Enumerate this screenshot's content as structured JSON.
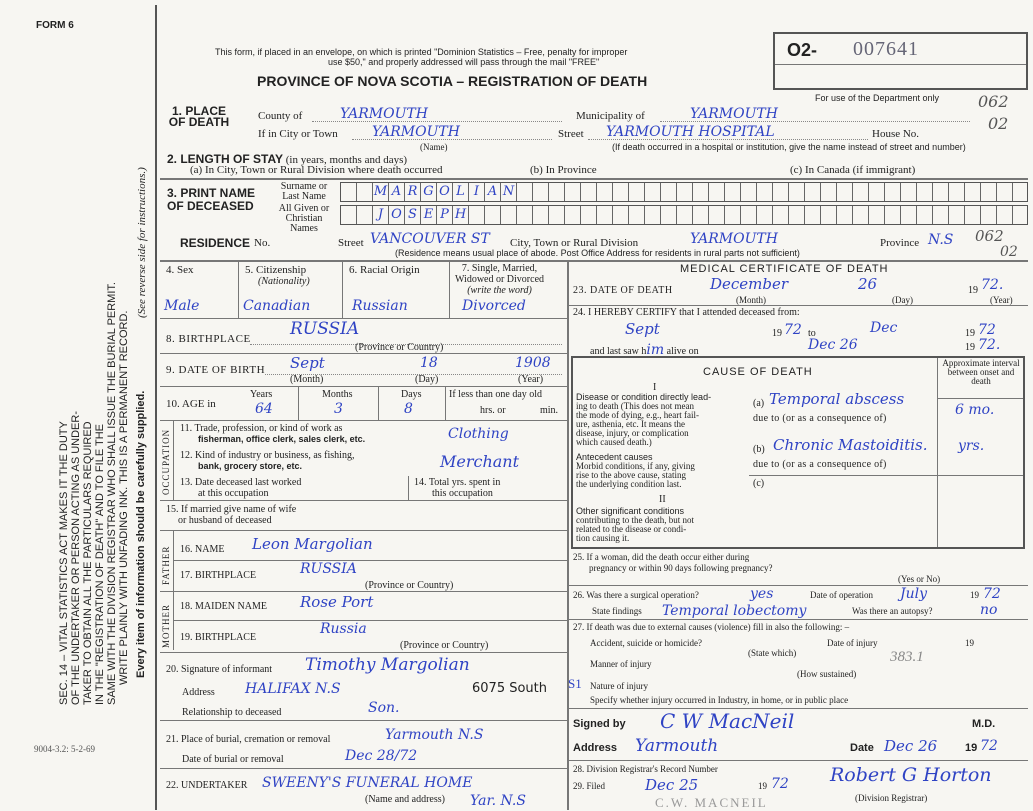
{
  "margin": {
    "form_no": "FORM 6",
    "print_code": "9004-3.2: 5-2-69",
    "statute_lines": [
      "SEC. 14 – VITAL STATISTICS ACT MAKES IT THE DUTY",
      "OF THE UNDERTAKER OR PERSON ACTING AS UNDER-",
      "TAKER TO OBTAIN ALL THE PARTICULARS REQUIRED",
      "IN THE \"REGISTRATION OF DEATH\" AND TO FILE THE",
      "SAME WITH THE DIVISION REGISTRAR WHO SHALL ISSUE THE BURIAL PERMIT.",
      "WRITE PLAINLY WITH UNFADING INK. THIS IS A PERMANENT RECORD."
    ],
    "every_item": "Every item of information should be carefully supplied.",
    "see_reverse": "(See reverse side for instructions.)"
  },
  "header": {
    "notice1": "This form, if placed in an envelope, on which is printed \"Dominion Statistics – Free, penalty for improper",
    "notice2": "use $50,\" and properly addressed will pass through the mail \"FREE\"",
    "title": "PROVINCE OF NOVA SCOTIA – REGISTRATION OF DEATH",
    "reg_prefix": "O2-",
    "reg_number": "007641",
    "dept_only": "For use of the Department only",
    "code1": "062",
    "code2": "02",
    "code3": "062",
    "code4": "02"
  },
  "place": {
    "label": "1. PLACE OF DEATH",
    "county_label": "County of",
    "county": "YARMOUTH",
    "muni_label": "Municipality of",
    "muni": "YARMOUTH",
    "city_label": "If in City or Town",
    "city": "YARMOUTH",
    "name_note": "(Name)",
    "street_label": "Street",
    "street": "YARMOUTH HOSPITAL",
    "house_label": "House No.",
    "hospital_note": "(If death occurred in a hospital or institution, give the name instead of street and number)"
  },
  "stay": {
    "label": "2. LENGTH OF STAY",
    "label_note": "(in years, months and days)",
    "a": "(a) In City, Town or Rural Division where death occurred",
    "b": "(b) In Province",
    "c": "(c) In Canada (if immigrant)"
  },
  "name": {
    "label": "3. PRINT NAME OF DECEASED",
    "surname_label": "Surname or Last Name",
    "given_label": "All Given or Christian Names",
    "surname": [
      "M",
      "A",
      "R",
      "G",
      "O",
      "L",
      "I",
      "A",
      "N"
    ],
    "given": [
      "J",
      "O",
      "S",
      "E",
      "P",
      "H"
    ]
  },
  "residence": {
    "label": "RESIDENCE",
    "no_label": "No.",
    "street_label": "Street",
    "street": "VANCOUVER ST",
    "city_label": "City, Town or Rural Division",
    "city": "YARMOUTH",
    "prov_label": "Province",
    "prov": "N.S",
    "note": "(Residence means usual place of abode. Post Office Address for residents in rural parts not sufficient)"
  },
  "personal": {
    "sex_label": "4. Sex",
    "sex": "Male",
    "cit_label": "5. Citizenship",
    "cit_note": "(Nationality)",
    "cit": "Canadian",
    "race_label": "6. Racial Origin",
    "race": "Russian",
    "marital_label1": "7. Single, Married,",
    "marital_label2": "Widowed or Divorced",
    "marital_note": "(write the word)",
    "marital": "Divorced",
    "birthplace_label": "8. BIRTHPLACE",
    "birthplace": "RUSSIA",
    "prov_country": "(Province or Country)",
    "dob_label": "9. DATE OF BIRTH",
    "dob_month": "Sept",
    "dob_day": "18",
    "dob_year": "1908",
    "month": "(Month)",
    "day": "(Day)",
    "year": "(Year)",
    "age_label": "10. AGE in",
    "years_label": "Years",
    "years": "64",
    "months_label": "Months",
    "months": "3",
    "days_label": "Days",
    "days": "8",
    "lessday_label": "If less than one day old",
    "hrs": "hrs. or",
    "min": "min."
  },
  "occupation": {
    "side": "OCCUPATION",
    "q11a": "11. Trade, profession, or kind of work as",
    "q11b": "fisherman, office clerk, sales clerk, etc.",
    "a11": "Clothing",
    "q12a": "12. Kind of industry or business, as fishing,",
    "q12b": "bank, grocery store, etc.",
    "a12": "Merchant",
    "q13a": "13. Date deceased last worked",
    "q13b": "at this occupation",
    "q14a": "14. Total yrs. spent in",
    "q14b": "this occupation",
    "q15a": "15. If married give name of wife",
    "q15b": "or husband of deceased"
  },
  "father": {
    "side": "FATHER",
    "name_label": "16. NAME",
    "name": "Leon Margolian",
    "bp_label": "17. BIRTHPLACE",
    "bp": "RUSSIA"
  },
  "mother": {
    "side": "MOTHER",
    "name_label": "18. MAIDEN NAME",
    "name": "Rose Port",
    "bp_label": "19. BIRTHPLACE",
    "bp": "Russia"
  },
  "informant": {
    "sig_label": "20. Signature of informant",
    "sig": "Timothy Margolian",
    "addr_label": "Address",
    "addr": "HALIFAX N.S",
    "addr2": "6075 South",
    "rel_label": "Relationship to deceased",
    "rel": "Son."
  },
  "burial": {
    "place_label": "21. Place of burial, cremation or removal",
    "place": "Yarmouth N.S",
    "date_label": "Date of burial or removal",
    "date": "Dec 28/72",
    "und_label": "22. UNDERTAKER",
    "und": "SWEENY'S FUNERAL HOME",
    "und_note": "(Name and address)",
    "und2": "Yar. N.S"
  },
  "medical": {
    "title": "MEDICAL CERTIFICATE OF DEATH",
    "dod_label": "23. DATE OF DEATH",
    "dod_month": "December",
    "dod_day": "26",
    "dod_year": "72.",
    "nineteen": "19",
    "cert_label": "24. I HEREBY CERTIFY that I attended deceased from:",
    "from": "Sept",
    "from_year": "72",
    "to": "to",
    "to_month": "Dec",
    "to_year": "72",
    "lastsaw_label": "and last saw h",
    "lastsaw_him": "im",
    "alive_on": "alive on",
    "last_date": "Dec 26",
    "last_year": "72."
  },
  "cause": {
    "title": "CAUSE OF DEATH",
    "interval": "Approximate interval between onset and death",
    "I": "I",
    "dis_bold": "Disease or condition directly lead-",
    "dis_text": [
      "ing to death (This does not mean",
      "the mode of dying, e.g., heart fail-",
      "ure, asthenia, etc. It means the",
      "disease, injury, or complication",
      "which caused death.)"
    ],
    "a_label": "(a)",
    "a": "Temporal abscess",
    "a_int": "6 mo.",
    "due": "due to (or as a consequence of)",
    "ante_bold": "Antecedent causes",
    "ante_text": [
      "Morbid conditions, if any, giving",
      "rise to the above cause, stating",
      "the underlying condition last."
    ],
    "b_label": "(b)",
    "b": "Chronic Mastoiditis.",
    "b_int": "yrs.",
    "c_label": "(c)",
    "II": "II",
    "other_bold": "Other significant conditions",
    "other_text": [
      "contributing to the death, but not",
      "related to the disease or condi-",
      "tion causing it."
    ]
  },
  "q25": {
    "l1": "25. If a woman, did the death occur either during",
    "l2": "pregnancy or within 90 days following pregnancy?",
    "note": "(Yes or No)"
  },
  "q26": {
    "l1": "26. Was there a surgical operation?",
    "op": "yes",
    "date_label": "Date of operation",
    "date": "July",
    "year": "72",
    "findings_label": "State findings",
    "findings": "Temporal lobectomy",
    "autopsy_label": "Was there an autopsy?",
    "autopsy": "no"
  },
  "q27": {
    "l1": "27. If death was due to external causes (violence) fill in also the following: –",
    "acc": "Accident, suicide or homicide?",
    "state_which": "(State which)",
    "doi": "Date of injury",
    "manner": "Manner of injury",
    "manner_code": "383.1",
    "how": "(How sustained)",
    "nature": "Nature of injury",
    "margin_mark": "S1",
    "specify": "Specify whether injury occurred in Industry, in home, or in public place"
  },
  "signoff": {
    "signed_label": "Signed by",
    "signed": "C W MacNeil",
    "md": "M.D.",
    "addr_label": "Address",
    "addr": "Yarmouth",
    "date_label": "Date",
    "date": "Dec 26",
    "year": "72",
    "q28": "28. Division Registrar's Record Number",
    "q29": "29. Filed",
    "filed": "Dec 25",
    "filed_year": "72",
    "registrar_sig": "Robert G Horton",
    "registrar_label": "(Division Registrar)",
    "stamp": "C.W. MACNEIL"
  },
  "colors": {
    "ink": "#2f43c4",
    "paper": "#f7f6f2"
  }
}
